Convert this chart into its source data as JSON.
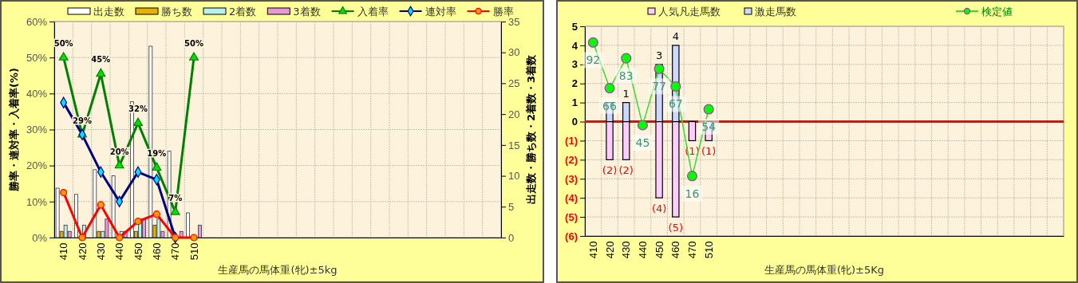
{
  "chart_data": [
    {
      "type": "bar",
      "xlabel": "生産馬の馬体重(牝)±5kg",
      "ylabel": "勝率・連対率・入着率(%)",
      "y2label": "出走数・勝ち数・2着数・3着数",
      "categories": [
        "410",
        "420",
        "430",
        "440",
        "450",
        "460",
        "470",
        "510",
        null,
        null,
        null,
        null,
        null,
        null,
        null,
        null,
        null,
        null,
        null,
        null,
        null,
        null,
        null,
        null
      ],
      "ylim": [
        0,
        60
      ],
      "yticks": [
        {
          "value": 0,
          "label": "0%"
        },
        {
          "value": 10,
          "label": "10%"
        },
        {
          "value": 20,
          "label": "20%"
        },
        {
          "value": 30,
          "label": "30%"
        },
        {
          "value": 40,
          "label": "40%"
        },
        {
          "value": 50,
          "label": "50%"
        },
        {
          "value": 60,
          "label": "60%"
        }
      ],
      "y2lim": [
        0,
        35
      ],
      "y2ticks": [
        0,
        5,
        10,
        15,
        20,
        25,
        30,
        35
      ],
      "grid": true,
      "legend": "top",
      "series": [
        {
          "name": "出走数",
          "type": "bar",
          "axis": "y2",
          "color": "#ffffff",
          "values": [
            8,
            7,
            11,
            10,
            22,
            31,
            14,
            4,
            null,
            null,
            null,
            null,
            null,
            null,
            null,
            null,
            null,
            null,
            null,
            null,
            null,
            null,
            null,
            null
          ]
        },
        {
          "name": "勝ち数",
          "type": "bar",
          "axis": "y2",
          "color": "#e8b000",
          "values": [
            1,
            0,
            1,
            0,
            1,
            2,
            0,
            0,
            null,
            null,
            null,
            null,
            null,
            null,
            null,
            null,
            null,
            null,
            null,
            null,
            null,
            null,
            null,
            null
          ]
        },
        {
          "name": "2着数",
          "type": "bar",
          "axis": "y2",
          "color": "#b8f0f0",
          "values": [
            2,
            2,
            1,
            1,
            3,
            3,
            0,
            0,
            null,
            null,
            null,
            null,
            null,
            null,
            null,
            null,
            null,
            null,
            null,
            null,
            null,
            null,
            null,
            null
          ]
        },
        {
          "name": "3着数",
          "type": "bar",
          "axis": "y2",
          "color": "#e898d8",
          "values": [
            1,
            0,
            3,
            1,
            3,
            1,
            1,
            2,
            null,
            null,
            null,
            null,
            null,
            null,
            null,
            null,
            null,
            null,
            null,
            null,
            null,
            null,
            null,
            null
          ]
        },
        {
          "name": "入着率",
          "type": "line",
          "color": "#008000",
          "marker": "triangle",
          "values": [
            50,
            28.6,
            45.5,
            20,
            31.8,
            19.4,
            7.1,
            50,
            null,
            null,
            null,
            null,
            null,
            null,
            null,
            null,
            null,
            null,
            null,
            null,
            null,
            null,
            null,
            null
          ],
          "value_labels": [
            "50%",
            "29%",
            "45%",
            "20%",
            "32%",
            "19%",
            "7%",
            "50%",
            null,
            null,
            null,
            null,
            null,
            null,
            null,
            null,
            null,
            null,
            null,
            null,
            null,
            null,
            null,
            null
          ]
        },
        {
          "name": "連対率",
          "type": "line",
          "color": "#000080",
          "marker": "diamond",
          "values": [
            37.5,
            28.6,
            18.2,
            10,
            18.2,
            16.1,
            0,
            null,
            null,
            null,
            null,
            null,
            null,
            null,
            null,
            null,
            null,
            null,
            null,
            null,
            null,
            null,
            null,
            null
          ]
        },
        {
          "name": "勝率",
          "type": "line",
          "color": "#ff0000",
          "marker": "circle",
          "values": [
            12.5,
            0,
            9.1,
            0,
            4.5,
            6.5,
            0,
            0,
            null,
            null,
            null,
            null,
            null,
            null,
            null,
            null,
            null,
            null,
            null,
            null,
            null,
            null,
            null,
            null
          ]
        }
      ]
    },
    {
      "type": "bar",
      "xlabel": "生産馬の馬体重(牝)±5Kg",
      "stacked": true,
      "categories": [
        "410",
        "420",
        "430",
        "440",
        "450",
        "460",
        "470",
        "510",
        null,
        null,
        null,
        null,
        null,
        null,
        null,
        null,
        null,
        null,
        null,
        null,
        null,
        null,
        null,
        null,
        null,
        null,
        null,
        null,
        null
      ],
      "ylim": [
        -6,
        5
      ],
      "yticks": [
        5,
        4,
        3,
        2,
        1,
        0,
        {
          "value": -1,
          "label": "(1)"
        },
        {
          "value": -2,
          "label": "(2)"
        },
        {
          "value": -3,
          "label": "(3)"
        },
        {
          "value": -4,
          "label": "(4)"
        },
        {
          "value": -5,
          "label": "(5)"
        },
        {
          "value": -6,
          "label": "(6)"
        }
      ],
      "y2lim": [
        -18.1,
        101.2
      ],
      "grid": true,
      "legend": "top",
      "ref_lines": [
        {
          "axis": "y",
          "value": 0,
          "color": "#ff0000"
        }
      ],
      "series": [
        {
          "name": "人気凡走馬数",
          "type": "bar",
          "color": "#ffccff",
          "values": [
            0,
            -2,
            -2,
            0,
            -4,
            -5,
            -1,
            -1,
            null,
            null,
            null,
            null,
            null,
            null,
            null,
            null,
            null,
            null,
            null,
            null,
            null,
            null,
            null,
            null,
            null,
            null,
            null,
            null,
            null
          ],
          "value_labels": [
            null,
            "(2)",
            "(2)",
            null,
            "(4)",
            "(5)",
            "(1)",
            "(1)",
            null,
            null,
            null,
            null,
            null,
            null,
            null,
            null,
            null,
            null,
            null,
            null,
            null,
            null,
            null,
            null,
            null,
            null,
            null,
            null,
            null
          ]
        },
        {
          "name": "激走馬数",
          "type": "bar",
          "color": "#ccd8ff",
          "values": [
            0,
            1,
            1,
            0,
            3,
            4,
            0,
            0,
            null,
            null,
            null,
            null,
            null,
            null,
            null,
            null,
            null,
            null,
            null,
            null,
            null,
            null,
            null,
            null,
            null,
            null,
            null,
            null,
            null
          ],
          "value_labels": [
            null,
            null,
            "1",
            null,
            "3",
            "4",
            null,
            null,
            null,
            null,
            null,
            null,
            null,
            null,
            null,
            null,
            null,
            null,
            null,
            null,
            null,
            null,
            null,
            null,
            null,
            null,
            null,
            null,
            null
          ]
        },
        {
          "name": "検定値",
          "type": "line",
          "axis": "y2",
          "color": "#33dd33",
          "marker": "circle",
          "values": [
            92,
            66,
            83,
            45,
            77,
            67,
            16,
            54,
            null,
            null,
            null,
            null,
            null,
            null,
            null,
            null,
            null,
            null,
            null,
            null,
            null,
            null,
            null,
            null,
            null,
            null,
            null,
            null,
            null
          ],
          "data_labels": true
        }
      ]
    }
  ]
}
